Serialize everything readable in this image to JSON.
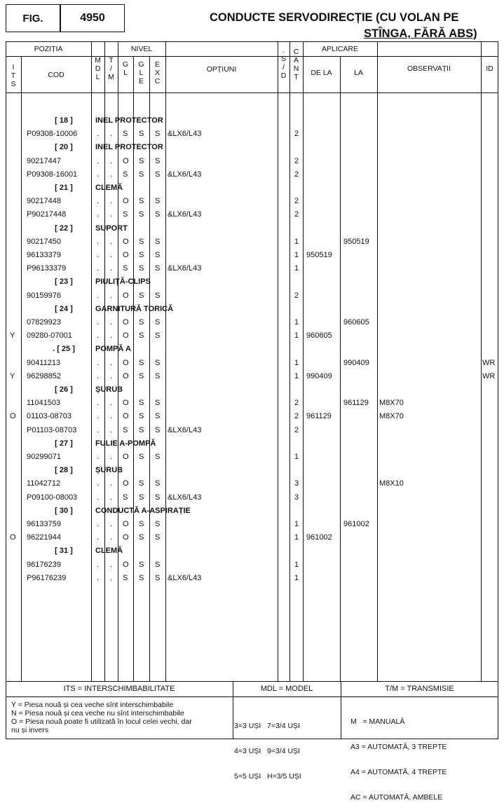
{
  "header": {
    "fig_label": "FIG.",
    "fig_number": "4950",
    "title_line1": "CONDUCTE SERVODIRECȚIE (CU VOLAN PE",
    "title_line2": "STÎNGA, FĂRĂ ABS)"
  },
  "columns": {
    "pozitia": "POZIȚIA",
    "its": [
      "I",
      "T",
      "S"
    ],
    "cod": "COD",
    "mdl": [
      "M",
      "D",
      "L"
    ],
    "tm": [
      "T",
      "/",
      "M"
    ],
    "nivel": "NIVEL",
    "gl": [
      "G",
      "L"
    ],
    "gle": [
      "G",
      "L",
      "E"
    ],
    "exc": [
      "E",
      "X",
      "C"
    ],
    "optiuni": "OPȚIUNI",
    "sd": [
      ".",
      "S",
      "/",
      "D"
    ],
    "cant": [
      "C",
      "A",
      "N",
      "T"
    ],
    "aplicare": "APLICARE",
    "de_la": "DE LA",
    "la": "LA",
    "observatii": "OBSERVAȚII",
    "id": "ID"
  },
  "rows": [
    {
      "type": "group",
      "pos": "[ 18 ]",
      "name": "INEL PROTECTOR"
    },
    {
      "type": "item",
      "its": "",
      "cod": "P09308-10006",
      "gl": "S",
      "gle": "S",
      "exc": "S",
      "opt": "&LX6/L43",
      "cant": "2",
      "de": "",
      "la": "",
      "obs": "",
      "id": ""
    },
    {
      "type": "group",
      "pos": "[ 20 ]",
      "name": "INEL PROTECTOR"
    },
    {
      "type": "item",
      "its": "",
      "cod": "90217447",
      "gl": "O",
      "gle": "S",
      "exc": "S",
      "opt": "",
      "cant": "2",
      "de": "",
      "la": "",
      "obs": "",
      "id": ""
    },
    {
      "type": "item",
      "its": "",
      "cod": "P09308-16001",
      "gl": "S",
      "gle": "S",
      "exc": "S",
      "opt": "&LX6/L43",
      "cant": "2",
      "de": "",
      "la": "",
      "obs": "",
      "id": ""
    },
    {
      "type": "group",
      "pos": "[ 21 ]",
      "name": "CLEMĂ"
    },
    {
      "type": "item",
      "its": "",
      "cod": "90217448",
      "gl": "O",
      "gle": "S",
      "exc": "S",
      "opt": "",
      "cant": "2",
      "de": "",
      "la": "",
      "obs": "",
      "id": ""
    },
    {
      "type": "item",
      "its": "",
      "cod": "P90217448",
      "gl": "S",
      "gle": "S",
      "exc": "S",
      "opt": "&LX6/L43",
      "cant": "2",
      "de": "",
      "la": "",
      "obs": "",
      "id": ""
    },
    {
      "type": "group",
      "pos": "[ 22 ]",
      "name": "SUPORT"
    },
    {
      "type": "item",
      "its": "",
      "cod": "90217450",
      "gl": "O",
      "gle": "S",
      "exc": "S",
      "opt": "",
      "cant": "1",
      "de": "",
      "la": "950519",
      "obs": "",
      "id": ""
    },
    {
      "type": "item",
      "its": "",
      "cod": "96133379",
      "gl": "O",
      "gle": "S",
      "exc": "S",
      "opt": "",
      "cant": "1",
      "de": "950519",
      "la": "",
      "obs": "",
      "id": ""
    },
    {
      "type": "item",
      "its": "",
      "cod": "P96133379",
      "gl": "S",
      "gle": "S",
      "exc": "S",
      "opt": "&LX6/L43",
      "cant": "1",
      "de": "",
      "la": "",
      "obs": "",
      "id": ""
    },
    {
      "type": "group",
      "pos": "[ 23 ]",
      "name": "PIULIȚĂ-CLIPS"
    },
    {
      "type": "item",
      "its": "",
      "cod": "90159976",
      "gl": "O",
      "gle": "S",
      "exc": "S",
      "opt": "",
      "cant": "2",
      "de": "",
      "la": "",
      "obs": "",
      "id": ""
    },
    {
      "type": "group",
      "pos": "[ 24 ]",
      "name": "GARNITURĂ TORICĂ"
    },
    {
      "type": "item",
      "its": "",
      "cod": "07829923",
      "gl": "O",
      "gle": "S",
      "exc": "S",
      "opt": "",
      "cant": "1",
      "de": "",
      "la": "960605",
      "obs": "",
      "id": ""
    },
    {
      "type": "item",
      "its": "Y",
      "cod": "09280-07001",
      "gl": "O",
      "gle": "S",
      "exc": "S",
      "opt": "",
      "cant": "1",
      "de": "960605",
      "la": "",
      "obs": "",
      "id": ""
    },
    {
      "type": "group",
      "pos": ". [ 25 ]",
      "name": "POMPĂ A"
    },
    {
      "type": "item",
      "its": "",
      "cod": "90411213",
      "gl": "O",
      "gle": "S",
      "exc": "S",
      "opt": "",
      "cant": "1",
      "de": "",
      "la": "990409",
      "obs": "",
      "id": "WR"
    },
    {
      "type": "item",
      "its": "Y",
      "cod": "96298852",
      "gl": "O",
      "gle": "S",
      "exc": "S",
      "opt": "",
      "cant": "1",
      "de": "990409",
      "la": "",
      "obs": "",
      "id": "WR"
    },
    {
      "type": "group",
      "pos": "[ 26 ]",
      "name": "ȘURUB"
    },
    {
      "type": "item",
      "its": "",
      "cod": "11041503",
      "gl": "O",
      "gle": "S",
      "exc": "S",
      "opt": "",
      "cant": "2",
      "de": "",
      "la": "961129",
      "obs": "M8X70",
      "id": ""
    },
    {
      "type": "item",
      "its": "O",
      "cod": "01103-08703",
      "gl": "O",
      "gle": "S",
      "exc": "S",
      "opt": "",
      "cant": "2",
      "de": "961129",
      "la": "",
      "obs": "M8X70",
      "id": ""
    },
    {
      "type": "item",
      "its": "",
      "cod": "P01103-08703",
      "gl": "S",
      "gle": "S",
      "exc": "S",
      "opt": "&LX6/L43",
      "cant": "2",
      "de": "",
      "la": "",
      "obs": "",
      "id": ""
    },
    {
      "type": "group",
      "pos": "[ 27 ]",
      "name": "FULIE A-POMPĂ"
    },
    {
      "type": "item",
      "its": "",
      "cod": "90299071",
      "gl": "O",
      "gle": "S",
      "exc": "S",
      "opt": "",
      "cant": "1",
      "de": "",
      "la": "",
      "obs": "",
      "id": ""
    },
    {
      "type": "group",
      "pos": "[ 28 ]",
      "name": "ȘURUB"
    },
    {
      "type": "item",
      "its": "",
      "cod": "11042712",
      "gl": "O",
      "gle": "S",
      "exc": "S",
      "opt": "",
      "cant": "3",
      "de": "",
      "la": "",
      "obs": "M8X10",
      "id": ""
    },
    {
      "type": "item",
      "its": "",
      "cod": "P09100-08003",
      "gl": "S",
      "gle": "S",
      "exc": "S",
      "opt": "&LX6/L43",
      "cant": "3",
      "de": "",
      "la": "",
      "obs": "",
      "id": ""
    },
    {
      "type": "group",
      "pos": "[ 30 ]",
      "name": "CONDUCTĂ A-ASPIRAȚIE"
    },
    {
      "type": "item",
      "its": "",
      "cod": "96133759",
      "gl": "O",
      "gle": "S",
      "exc": "S",
      "opt": "",
      "cant": "1",
      "de": "",
      "la": "961002",
      "obs": "",
      "id": ""
    },
    {
      "type": "item",
      "its": "O",
      "cod": "96221944",
      "gl": "O",
      "gle": "S",
      "exc": "S",
      "opt": "",
      "cant": "1",
      "de": "961002",
      "la": "",
      "obs": "",
      "id": ""
    },
    {
      "type": "group",
      "pos": "[ 31 ]",
      "name": "CLEMĂ"
    },
    {
      "type": "item",
      "its": "",
      "cod": "96176239",
      "gl": "O",
      "gle": "S",
      "exc": "S",
      "opt": "",
      "cant": "1",
      "de": "",
      "la": "",
      "obs": "",
      "id": ""
    },
    {
      "type": "item",
      "its": "",
      "cod": "P96176239",
      "gl": "S",
      "gle": "S",
      "exc": "S",
      "opt": "&LX6/L43",
      "cant": "1",
      "de": "",
      "la": "",
      "obs": "",
      "id": ""
    }
  ],
  "footer": {
    "its_title": "ITS = INTERSCHIMBABILITATE",
    "its_lines": [
      "Y = Piesa nouă și cea veche sînt interschimbabile",
      "N = Piesa nouă și  cea veche nu sînt interschimbabile",
      "O = Piesa nouă poate fi utilizată în locul celei vechi, dar",
      "nu și invers"
    ],
    "mdl_title": "MDL = MODEL",
    "mdl_lines": [
      "3=3 UȘI   7=3/4 UȘI",
      "4=3 UȘI   9=3/4 UȘI",
      "5=5 UȘI   H=3/5 UȘI"
    ],
    "tm_title": "T/M = TRANSMISIE",
    "tm_lines": [
      "M   = MANUALĂ",
      "A3 = AUTOMATĂ, 3 TREPTE",
      "A4 = AUTOMATĂ, 4 TREPTE",
      "AC = AUTOMATĂ, AMBELE"
    ]
  }
}
